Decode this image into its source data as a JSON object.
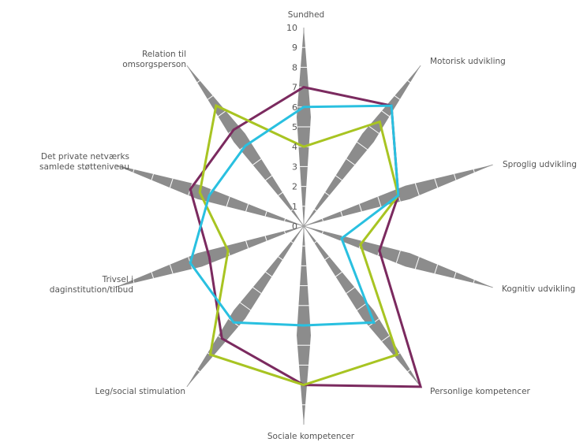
{
  "chart_data": {
    "type": "radar",
    "axes": [
      "Sundhed",
      "Motorisk udvikling",
      "Sproglig udvikling",
      "Kognitiv udvikling",
      "Personlige kompetencer",
      "Sociale kompetencer",
      "Leg/social stimulation",
      "Trivsel i daginstitution/tilbud",
      "Det private netværks samlede støtteniveau",
      "Relation til omsorgsperson"
    ],
    "axis_label_lines": [
      [
        "Sundhed"
      ],
      [
        "Motorisk udvikling"
      ],
      [
        "Sproglig udvikling"
      ],
      [
        "Kognitiv udvikling"
      ],
      [
        "Personlige kompetencer"
      ],
      [
        "Sociale kompetencer"
      ],
      [
        "Leg/social stimulation"
      ],
      [
        "Trivsel i",
        "daginstitution/tilbud"
      ],
      [
        "Det private netværks",
        "samlede støtteniveau"
      ],
      [
        "Relation til",
        "omsorgsperson"
      ]
    ],
    "range": [
      0,
      10
    ],
    "ticks": [
      "0",
      "1",
      "2",
      "3",
      "4",
      "5",
      "6",
      "7",
      "8",
      "9",
      "10"
    ],
    "series": [
      {
        "color": "#7b2a5f",
        "values": [
          7,
          7.5,
          5,
          4,
          10,
          8,
          7,
          5,
          6,
          6
        ]
      },
      {
        "color": "#a8c422",
        "values": [
          4,
          6.5,
          5,
          3,
          8,
          8,
          8,
          4,
          5.5,
          7.5
        ]
      },
      {
        "color": "#29c0e0",
        "values": [
          6,
          7.5,
          5,
          2,
          6,
          5,
          6,
          6,
          5,
          5
        ]
      }
    ]
  }
}
